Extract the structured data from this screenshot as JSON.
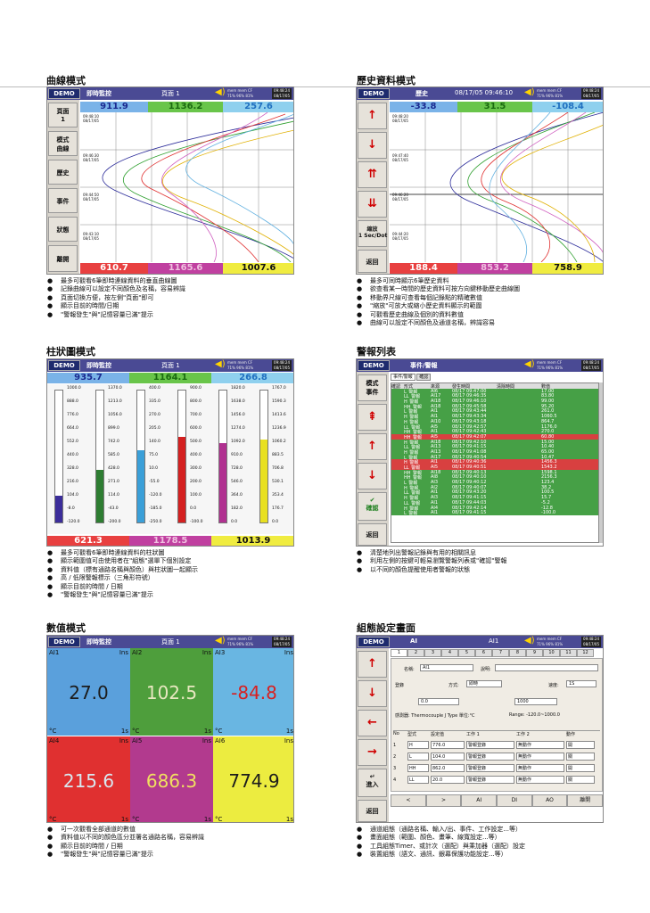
{
  "common": {
    "demo": "DEMO",
    "pages": "頁面 1",
    "speaker": "◀)",
    "tiny": "mem mem CF\n71% 96% 81%",
    "clock": "09:48:24\n08/17/05"
  },
  "curve": {
    "title": "曲線模式",
    "mode": "即時監控",
    "nums": [
      "911.9",
      "1136.2",
      "257.6",
      "610.7",
      "1165.6",
      "1007.6"
    ],
    "side": [
      "頁面\n1",
      "模式\n曲線",
      "歷史",
      "事件",
      "狀態",
      "離開"
    ],
    "stamps": [
      "09:48:10\n08/17/05",
      "09:46:30\n08/17/05",
      "09:44:50\n08/17/05",
      "09:43:10\n08/17/05"
    ],
    "bullets": [
      "最多可觀看6筆即時連線資料的垂直曲線圖",
      "記錄曲線可以設定不同顏色及名稱，容易辨識",
      "頁面切換方便，按左側\"頁面\"即可",
      "顯示目前的時間/日期",
      "\"警報發生\"與\"記憶容量已滿\"提示"
    ]
  },
  "hist": {
    "title": "歷史資料模式",
    "mode": "歷史",
    "ts": "08/17/05 09:46:10",
    "nums": [
      "-33.8",
      "31.5",
      "-108.4",
      "188.4",
      "853.2",
      "758.9"
    ],
    "side": [
      "↑",
      "↓",
      "⇈",
      "⇊",
      "縮放\n1 Sec/Dot",
      "返回"
    ],
    "stamps": [
      "09:48:20\n08/17/05",
      "09:47:40\n08/17/05",
      "09:46:20\n08/17/05",
      "09:44:20\n08/17/05"
    ],
    "bullets": [
      "最多可同時顯示6筆歷史資料",
      "欲查看某一時間的歷史資料可按方向鍵移動歷史曲線圖",
      "移動界尺線可查看每個記錄點的精確數值",
      "\"縮放\"可放大或縮小歷史資料顯示的範圍",
      "可觀看歷史曲線及個別的資料數值",
      "曲線可以設定不同顏色及通道名稱，辨識容易"
    ]
  },
  "bars": {
    "title": "柱狀圖模式",
    "mode": "即時監控",
    "nums": [
      "935.7",
      "1164.1",
      "266.8",
      "621.3",
      "1178.5",
      "1013.9"
    ],
    "cols": [
      {
        "color": "#3b2d9a",
        "fill": 0.2,
        "ticks": [
          "1000.0",
          "888.0",
          "776.0",
          "664.0",
          "552.0",
          "440.0",
          "328.0",
          "216.0",
          "104.0",
          "-8.0",
          "-120.0"
        ]
      },
      {
        "color": "#2e7d32",
        "fill": 0.4,
        "ticks": [
          "1370.0",
          "1213.0",
          "1056.0",
          "899.0",
          "742.0",
          "585.0",
          "428.0",
          "271.0",
          "114.0",
          "-43.0",
          "-200.0"
        ]
      },
      {
        "color": "#3a9fd8",
        "fill": 0.55,
        "ticks": [
          "400.0",
          "335.0",
          "270.0",
          "205.0",
          "140.0",
          "75.0",
          "10.0",
          "-55.0",
          "-120.0",
          "-185.0",
          "-250.0"
        ]
      },
      {
        "color": "#d42020",
        "fill": 0.65,
        "ticks": [
          "900.0",
          "800.0",
          "700.0",
          "600.0",
          "500.0",
          "400.0",
          "300.0",
          "200.0",
          "100.0",
          "0.0",
          "-100.0"
        ]
      },
      {
        "color": "#b03090",
        "fill": 0.6,
        "ticks": [
          "1820.0",
          "1638.0",
          "1456.0",
          "1274.0",
          "1092.0",
          "910.0",
          "728.0",
          "546.0",
          "364.0",
          "182.0",
          "0.0"
        ]
      },
      {
        "color": "#e8e020",
        "fill": 0.63,
        "ticks": [
          "1767.0",
          "1590.3",
          "1413.6",
          "1236.9",
          "1060.2",
          "883.5",
          "706.8",
          "530.1",
          "353.4",
          "176.7",
          "0.0"
        ]
      }
    ],
    "bullets": [
      "最多可觀看6筆即時連線資料的柱狀圖",
      "顯示範圍值可由使用者在\"組態\"選單下個別設定",
      "資料值（標有通路名稱與顏色）與柱狀圖一起顯示",
      "高 / 低限警報標示（三角形符號）",
      "顯示目前的時間 / 日期",
      "\"警報發生\"與\"記憶容量已滿\"提示"
    ]
  },
  "alarm": {
    "title": "警報列表",
    "mode": "事件/警報",
    "tabs": [
      "事件/警報",
      "確認"
    ],
    "cols": [
      "確認",
      "形式",
      "來源",
      "發生時間",
      "清除時間",
      "數值"
    ],
    "side": [
      "模式\n事件",
      "⇞",
      "↑",
      "↓",
      "✔\n確認",
      "返回"
    ],
    "rows": [
      [
        "L_警報",
        "AI6",
        "08/17 09:47:00",
        "",
        "17.00",
        "g"
      ],
      [
        "LL_警報",
        "AI17",
        "08/17 09:46:35",
        "",
        "83.80",
        "g"
      ],
      [
        "H_警報",
        "AI18",
        "08/17 09:46:10",
        "",
        "99.00",
        "g"
      ],
      [
        "HH_警報",
        "AI18",
        "08/17 09:45:58",
        "",
        "95.20",
        "g"
      ],
      [
        "L_警報",
        "AI1",
        "08/17 09:43:44",
        "",
        "261.0",
        "g"
      ],
      [
        "H_警報",
        "AI1",
        "08/17 09:43:34",
        "",
        "1060.5",
        "g"
      ],
      [
        "H_警報",
        "AI10",
        "08/17 09:43:18",
        "",
        "864.7",
        "g"
      ],
      [
        "LL_警報",
        "AI5",
        "08/17 09:42:57",
        "",
        "1176.0",
        "g"
      ],
      [
        "HH_警報",
        "AI1",
        "08/17 09:42:43",
        "",
        "270.0",
        "g"
      ],
      [
        "HH_警報",
        "AI5",
        "08/17 09:42:07",
        "",
        "60.80",
        "r"
      ],
      [
        "H_警報",
        "AI18",
        "08/17 09:42:10",
        "",
        "15.00",
        "g"
      ],
      [
        "LL_警報",
        "AI13",
        "08/17 09:41:15",
        "",
        "10.40",
        "g"
      ],
      [
        "H_警報",
        "AI13",
        "08/17 09:41:08",
        "",
        "65.00",
        "g"
      ],
      [
        "L_警報",
        "AI17",
        "08/17 09:40:54",
        "",
        "10.47",
        "g"
      ],
      [
        "H_警報",
        "AI1",
        "08/17 09:40:36",
        "",
        "1456.3",
        "r"
      ],
      [
        "LL_警報",
        "AI5",
        "08/17 09:40:51",
        "",
        "1543.2",
        "r"
      ],
      [
        "HH_警報",
        "AI18",
        "08/17 09:40:13",
        "",
        "1598.1",
        "g"
      ],
      [
        "HH_警報",
        "AI8",
        "08/17 09:40:10",
        "",
        "2156.3",
        "g"
      ],
      [
        "L_警報",
        "AI3",
        "08/17 09:40:12",
        "",
        "123.4",
        "g"
      ],
      [
        "H_警報",
        "AI2",
        "08/17 09:40:07",
        "",
        "38.2",
        "g"
      ],
      [
        "LL_警報",
        "AI1",
        "08/17 09:43:20",
        "",
        "100.5",
        "g"
      ],
      [
        "H_警報",
        "AI3",
        "08/17 09:41:15",
        "",
        "15.7",
        "g"
      ],
      [
        "LL_警報",
        "AI1",
        "08/17 09:44:03",
        "",
        "-5.2",
        "g"
      ],
      [
        "H_警報",
        "AI4",
        "08/17 09:42:14",
        "",
        "-12.8",
        "g"
      ],
      [
        "L_警報",
        "AI1",
        "08/17 09:41:15",
        "",
        "-100.0",
        "g"
      ]
    ],
    "bullets": [
      "清楚地列出警報記錄與有用的相關訊息",
      "利用左側的按鍵可輕易瀏覽警報列表或\"確認\"警報",
      "以不同的顏色提醒使用者警報的狀態"
    ]
  },
  "numeric": {
    "title": "數值模式",
    "mode": "即時監控",
    "tiles": [
      {
        "label": "AI1",
        "ins": "Ins",
        "unit": "°C",
        "rng": "1s",
        "value": "27.0",
        "bg": "#5aa0dc",
        "fg": "#1c1c1c"
      },
      {
        "label": "AI2",
        "ins": "Ins",
        "unit": "°C",
        "rng": "1s",
        "value": "102.5",
        "bg": "#4e9e3c",
        "fg": "#e8e8c0"
      },
      {
        "label": "AI3",
        "ins": "Ins",
        "unit": "°C",
        "rng": "1s",
        "value": "-84.8",
        "bg": "#69b6e2",
        "fg": "#d82020"
      },
      {
        "label": "AI4",
        "ins": "Ins",
        "unit": "°C",
        "rng": "1s",
        "value": "215.6",
        "bg": "#e03030",
        "fg": "#d8e8f0"
      },
      {
        "label": "AI5",
        "ins": "Ins",
        "unit": "°C",
        "rng": "1s",
        "value": "686.3",
        "bg": "#b23a8e",
        "fg": "#f0e060"
      },
      {
        "label": "AI6",
        "ins": "Ins",
        "unit": "°C",
        "rng": "1s",
        "value": "774.9",
        "bg": "#ecec40",
        "fg": "#1c1c1c"
      }
    ],
    "bullets": [
      "可一次觀看全部通道的數值",
      "資料值以不同的顏色區分並署名通路名稱，容易辨識",
      "顯示目前的時間 / 日期",
      "\"警報發生\"與\"記憶容量已滿\"提示"
    ]
  },
  "config": {
    "title": "組態設定畫面",
    "mode": "AI",
    "mode2": "AI1",
    "tabs": [
      "1",
      "2",
      "3",
      "4",
      "5",
      "6",
      "7",
      "8",
      "9",
      "10",
      "11",
      "12"
    ],
    "name_label": "名稱:",
    "name_val": "AI1",
    "desc_label": "說明:",
    "log_label": "登錄",
    "mode_label": "方式:",
    "mode_val": "即時",
    "unit_label": "速度:",
    "unit_val": "1S",
    "scale_low": "0.0",
    "scale_high": "1000",
    "sensor": "感測器: Thermocouple J Type 單位:°C",
    "range": "Range: -120.0~1000.0",
    "ev_cols": [
      "No",
      "型式",
      "設定值",
      "工作 1",
      "工作 2",
      "動作"
    ],
    "ev_rows": [
      [
        "1",
        "H",
        "776.0",
        "警報登錄",
        "無動作",
        "開"
      ],
      [
        "2",
        "L",
        "104.0",
        "警報登錄",
        "無動作",
        "關"
      ],
      [
        "3",
        "HH",
        "862.0",
        "警報登錄",
        "無動作",
        "開"
      ],
      [
        "4",
        "LL",
        "20.0",
        "警報登錄",
        "無動作",
        "關"
      ]
    ],
    "side": [
      "↑",
      "↓",
      "←",
      "→",
      "↵\n進入",
      "返回"
    ],
    "bottom": [
      "<",
      ">",
      "AI",
      "DI",
      "AO",
      "離開"
    ],
    "bullets": [
      "通道組態（通路名稱、輸入/出、事件、工作設定...等）",
      "畫面組態（範圍、顏色、畫筆、線寬設定...等）",
      "工具組態Timer、或計次（選配）與乘加器（選配）設定",
      "裝置組態（語文、通訊、銀幕保護功能設定...等）"
    ]
  }
}
